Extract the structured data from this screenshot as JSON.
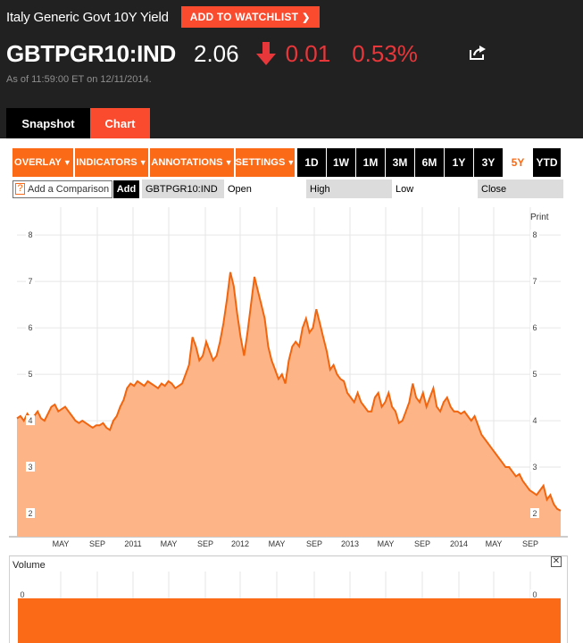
{
  "header": {
    "security_name": "Italy Generic Govt 10Y Yield",
    "watchlist_label": "ADD TO WATCHLIST",
    "ticker": "GBTPGR10:IND",
    "price": "2.06",
    "change": "0.01",
    "change_pct": "0.53%",
    "change_direction": "down",
    "as_of": "As of 11:59:00 ET on 12/11/2014.",
    "share_icon": "share-icon"
  },
  "tabs": {
    "snapshot": "Snapshot",
    "chart": "Chart",
    "active": "Chart"
  },
  "toolbar": {
    "menus": [
      "OVERLAY",
      "INDICATORS",
      "ANNOTATIONS",
      "SETTINGS"
    ],
    "ranges": [
      "1D",
      "1W",
      "1M",
      "3M",
      "6M",
      "1Y",
      "3Y",
      "5Y",
      "YTD"
    ],
    "active_range": "5Y"
  },
  "compare": {
    "help_icon": "?",
    "placeholder": "Add a Comparison",
    "add_label": "Add",
    "symbol": "GBTPGR10:IND",
    "open_label": "Open",
    "high_label": "High",
    "low_label": "Low",
    "close_label": "Close"
  },
  "print_label": "Print",
  "volume": {
    "title": "Volume",
    "axis_value": "0",
    "close_icon": "✕"
  },
  "colors": {
    "accent": "#fb6a17",
    "header_bg": "#212121",
    "down": "#e8373b",
    "area_fill": "#fdb487",
    "line": "#f2650f"
  },
  "chart_data": {
    "type": "area",
    "ylim": [
      1.5,
      8.6
    ],
    "yticks": [
      2,
      3,
      4,
      5,
      6,
      7,
      8
    ],
    "xtick_labels": [
      "MAY",
      "SEP",
      "2011",
      "MAY",
      "SEP",
      "2012",
      "MAY",
      "SEP",
      "2013",
      "MAY",
      "SEP",
      "2014",
      "MAY",
      "SEP"
    ],
    "grid": true,
    "series": [
      {
        "values": [
          4.05,
          4.1,
          4.0,
          4.15,
          4.05,
          4.1,
          4.2,
          4.05,
          4.0,
          4.15,
          4.3,
          4.35,
          4.2,
          4.25,
          4.3,
          4.2,
          4.1,
          4.0,
          3.95,
          4.0,
          3.95,
          3.9,
          3.85,
          3.9,
          3.9,
          3.95,
          3.85,
          3.8,
          4.0,
          4.1,
          4.3,
          4.45,
          4.7,
          4.8,
          4.75,
          4.85,
          4.8,
          4.75,
          4.85,
          4.8,
          4.75,
          4.7,
          4.8,
          4.75,
          4.85,
          4.8,
          4.7,
          4.75,
          4.8,
          5.0,
          5.2,
          5.8,
          5.6,
          5.3,
          5.4,
          5.7,
          5.5,
          5.3,
          5.4,
          5.7,
          6.1,
          6.6,
          7.2,
          6.9,
          6.3,
          5.8,
          5.4,
          5.9,
          6.5,
          7.1,
          6.8,
          6.5,
          6.2,
          5.6,
          5.3,
          5.1,
          4.9,
          5.0,
          4.8,
          5.3,
          5.6,
          5.7,
          5.6,
          6.0,
          6.2,
          5.9,
          6.0,
          6.4,
          6.1,
          5.8,
          5.5,
          5.1,
          5.2,
          5.0,
          4.9,
          4.85,
          4.6,
          4.5,
          4.4,
          4.6,
          4.4,
          4.3,
          4.2,
          4.2,
          4.5,
          4.6,
          4.3,
          4.4,
          4.6,
          4.3,
          4.2,
          3.95,
          4.0,
          4.2,
          4.4,
          4.8,
          4.5,
          4.4,
          4.6,
          4.3,
          4.5,
          4.7,
          4.3,
          4.2,
          4.4,
          4.5,
          4.3,
          4.2,
          4.2,
          4.15,
          4.2,
          4.1,
          4.0,
          4.1,
          3.9,
          3.7,
          3.6,
          3.5,
          3.4,
          3.3,
          3.2,
          3.1,
          3.0,
          3.0,
          2.9,
          2.8,
          2.85,
          2.7,
          2.6,
          2.5,
          2.45,
          2.4,
          2.5,
          2.6,
          2.3,
          2.4,
          2.2,
          2.1,
          2.06
        ]
      }
    ]
  }
}
